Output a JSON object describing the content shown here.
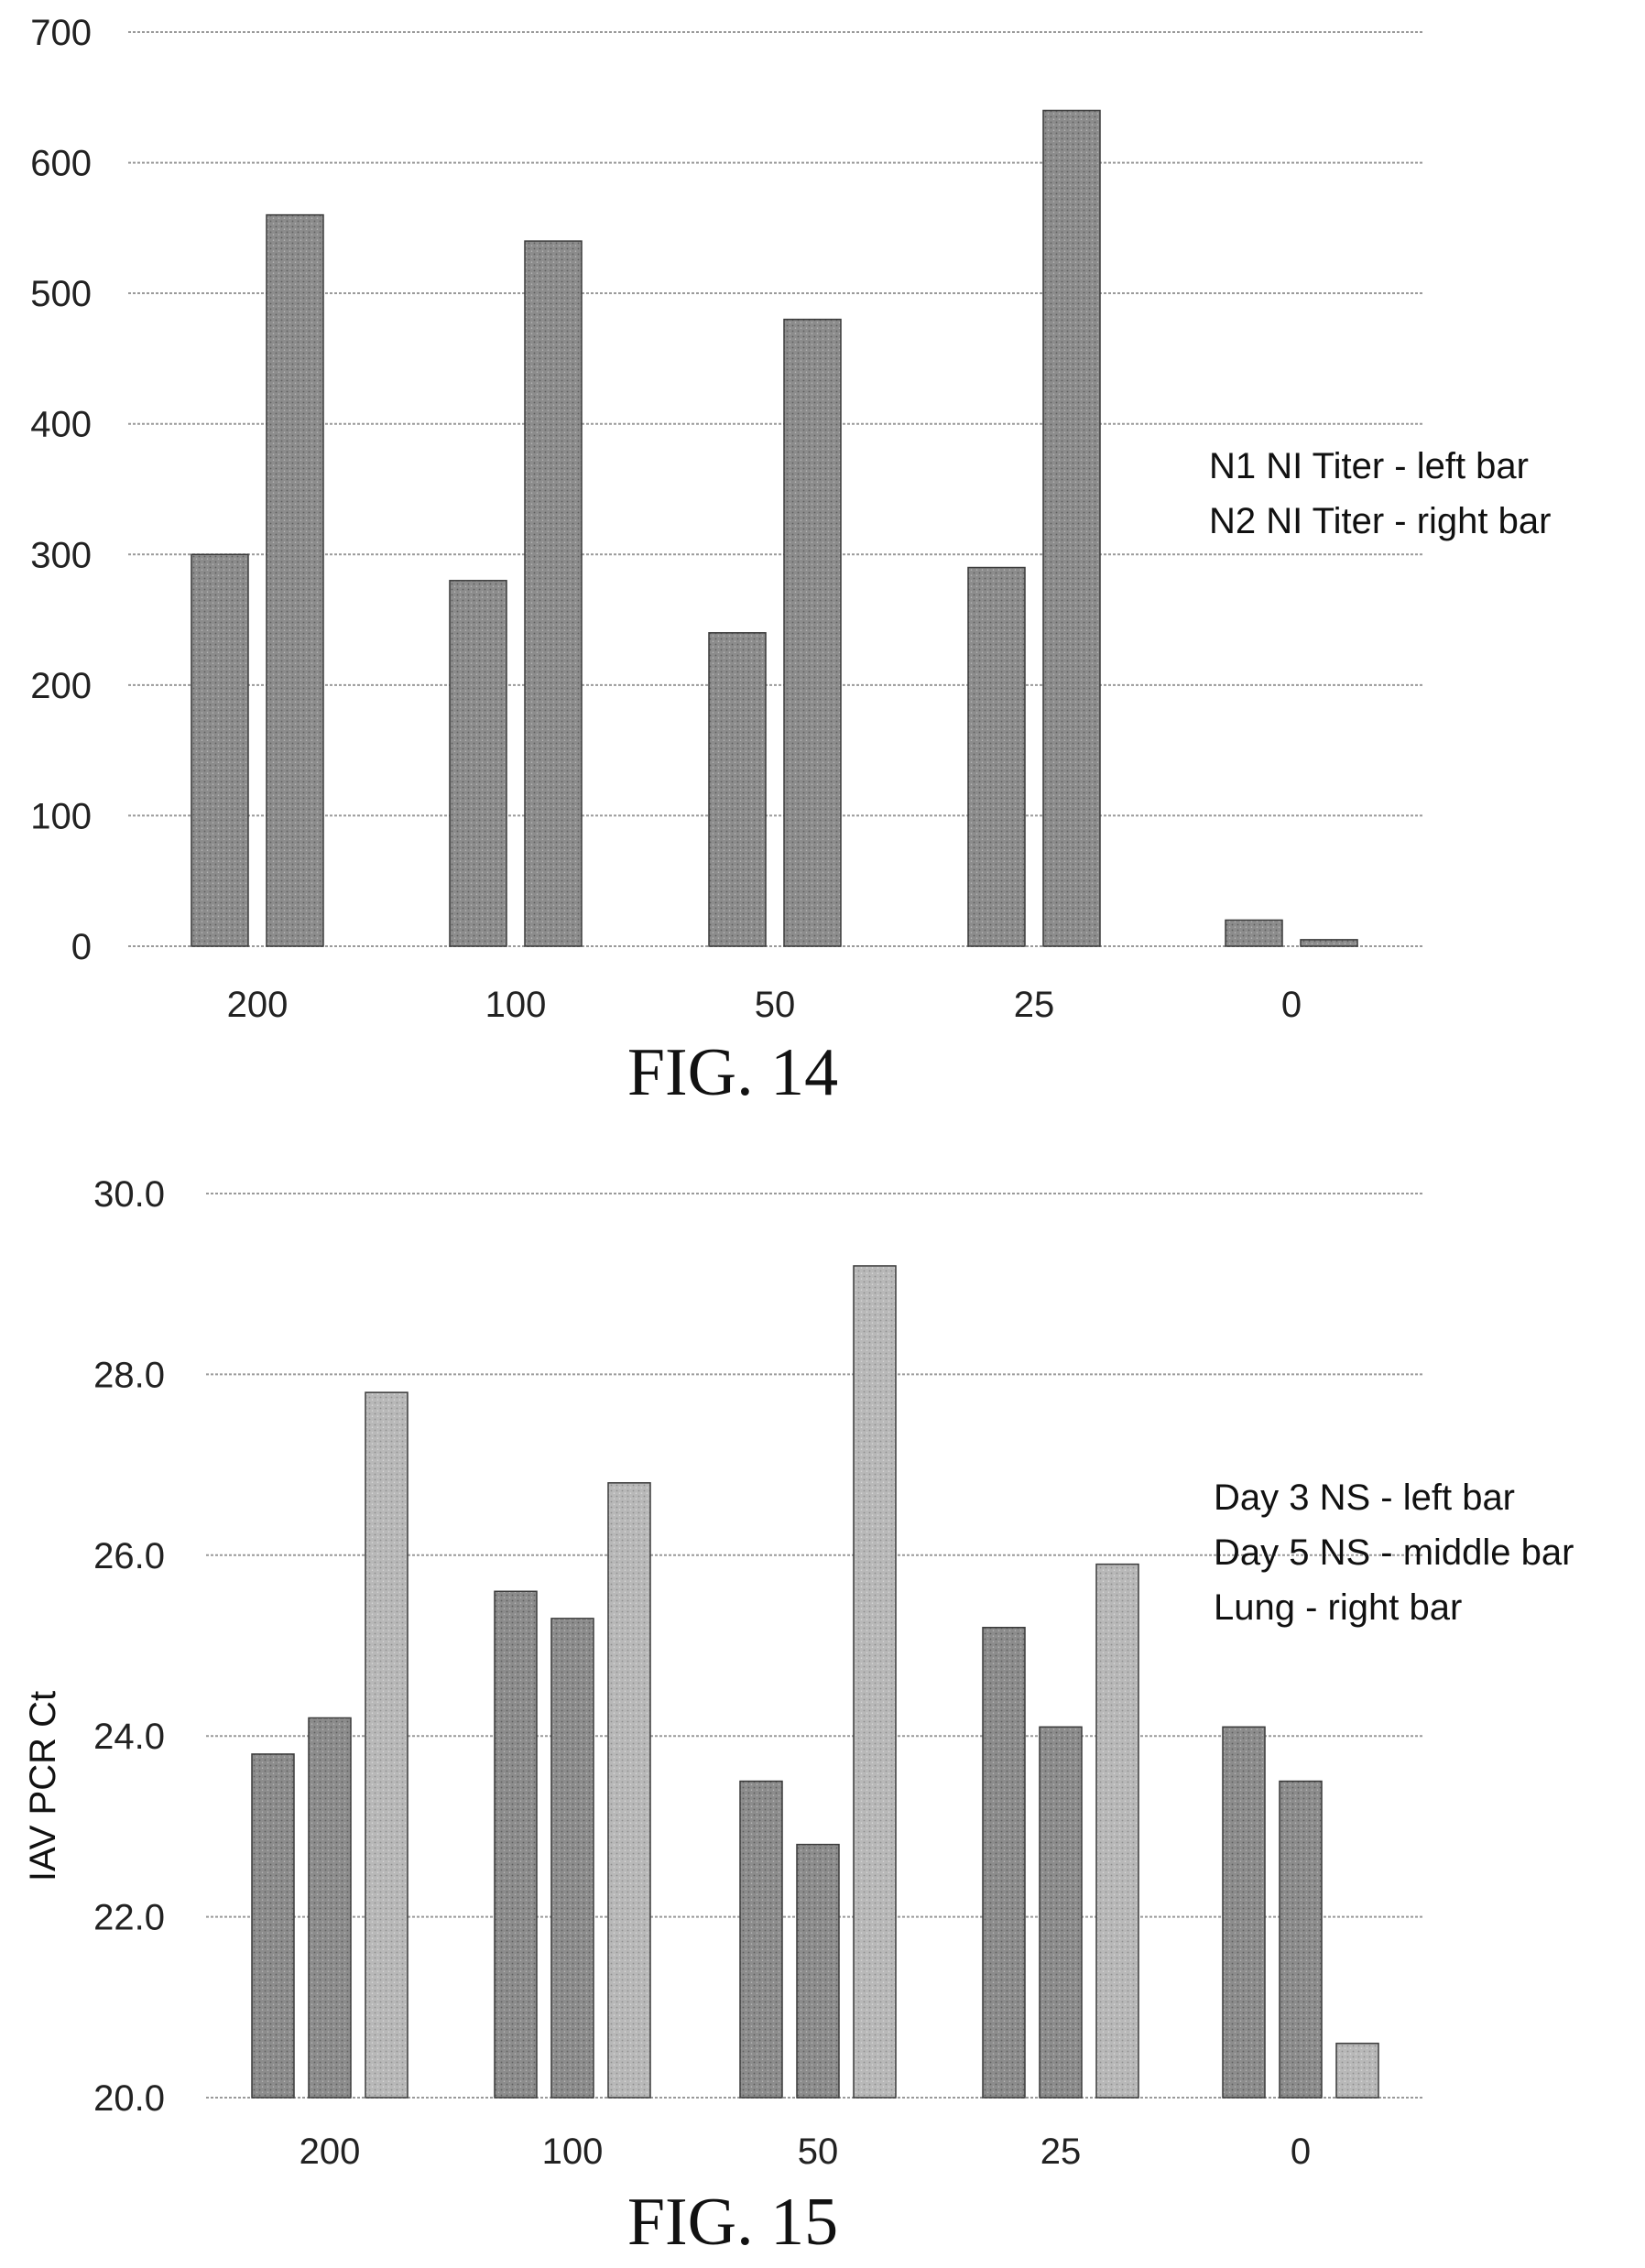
{
  "chart_data": [
    {
      "type": "bar",
      "caption": "FIG. 14",
      "categories": [
        "200",
        "100",
        "50",
        "25",
        "0"
      ],
      "series": [
        {
          "values": [
            300,
            280,
            240,
            290,
            20
          ]
        },
        {
          "values": [
            560,
            540,
            480,
            640,
            5
          ]
        }
      ],
      "legend": [
        "N1 NI Titer - left bar",
        "N2 NI Titer - right bar"
      ],
      "legend_position": "right",
      "ylabel": "",
      "xlabel": "",
      "ylim": [
        0,
        700
      ],
      "yticks": [
        "0",
        "100",
        "200",
        "300",
        "400",
        "500",
        "600",
        "700"
      ],
      "grid": true,
      "colors": [
        "#8a8a8a",
        "#8a8a8a"
      ]
    },
    {
      "type": "bar",
      "caption": "FIG. 15",
      "categories": [
        "200",
        "100",
        "50",
        "25",
        "0"
      ],
      "series": [
        {
          "values": [
            23.8,
            25.6,
            23.5,
            25.2,
            24.1
          ]
        },
        {
          "values": [
            24.2,
            25.3,
            22.8,
            24.1,
            23.5
          ]
        },
        {
          "values": [
            27.8,
            26.8,
            29.2,
            25.9,
            20.6
          ]
        }
      ],
      "legend": [
        "Day 3 NS - left bar",
        "Day 5 NS - middle bar",
        "Lung - right bar"
      ],
      "legend_position": "right",
      "ylabel": "IAV PCR Ct",
      "xlabel": "",
      "ylim": [
        20,
        30
      ],
      "yticks": [
        "20.0",
        "22.0",
        "24.0",
        "26.0",
        "28.0",
        "30.0"
      ],
      "grid": true,
      "colors": [
        "#8a8a8a",
        "#8a8a8a",
        "#b3b3b3"
      ]
    }
  ]
}
